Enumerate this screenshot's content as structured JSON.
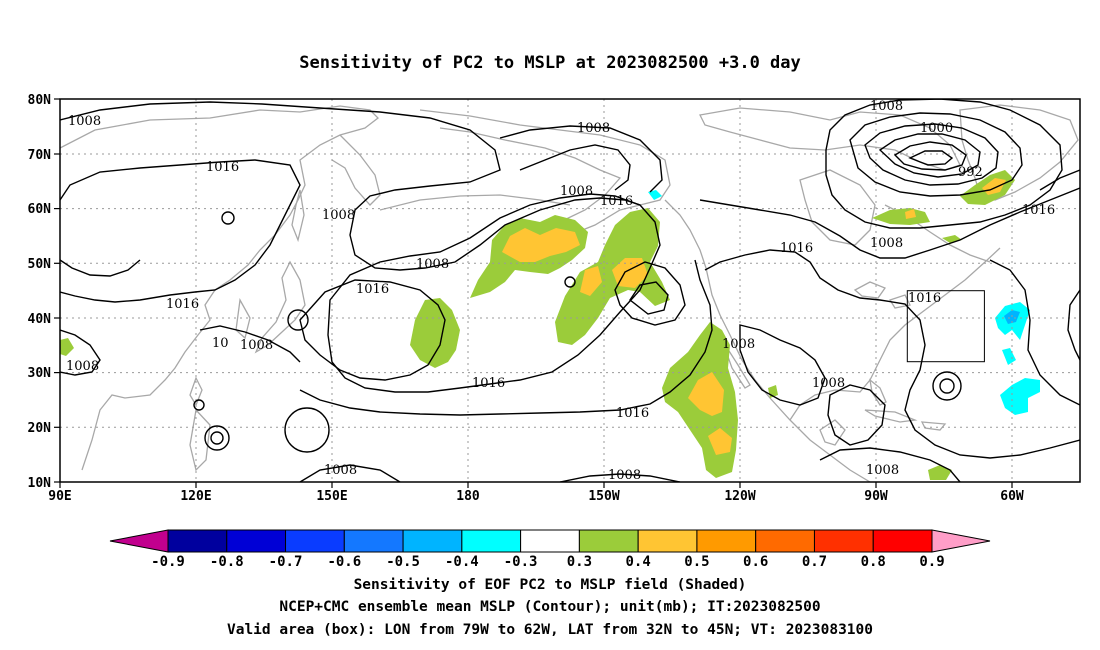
{
  "title": "Sensitivity of PC2 to MSLP at 2023082500 +3.0 day",
  "map": {
    "lon_labels": [
      "90E",
      "120E",
      "150E",
      "180",
      "150W",
      "120W",
      "90W",
      "60W"
    ],
    "lat_labels": [
      "80N",
      "70N",
      "60N",
      "50N",
      "40N",
      "30N",
      "20N",
      "10N"
    ],
    "isobar_labels": [
      {
        "text": "1008"
      },
      {
        "text": "1016"
      },
      {
        "text": "1008"
      },
      {
        "text": "1016"
      },
      {
        "text": "1008"
      },
      {
        "text": "1008"
      },
      {
        "text": "1016"
      },
      {
        "text": "1008"
      },
      {
        "text": "1000"
      },
      {
        "text": "992"
      },
      {
        "text": "1016"
      },
      {
        "text": "1016"
      },
      {
        "text": "1008"
      },
      {
        "text": "1016"
      },
      {
        "text": "1008"
      },
      {
        "text": "1016"
      },
      {
        "text": "1016"
      },
      {
        "text": "1008"
      },
      {
        "text": "1008"
      },
      {
        "text": "1008"
      },
      {
        "text": "1008"
      },
      {
        "text": "1008"
      },
      {
        "text": "1008"
      },
      {
        "text": "1016"
      },
      {
        "text": "1008"
      },
      {
        "text": "10"
      }
    ],
    "valid_box": {
      "lon_from": -79,
      "lon_to": -62,
      "lat_from": 32,
      "lat_to": 45
    }
  },
  "colorbar": {
    "colors": [
      "#c1008e",
      "#00009e",
      "#0000d6",
      "#0a3cff",
      "#1478ff",
      "#00b4ff",
      "#00ffff",
      "#ffffff",
      "#9bcc3a",
      "#ffc533",
      "#ff9a00",
      "#ff6a00",
      "#ff3000",
      "#ff0000",
      "#ff9ec8"
    ],
    "labels": [
      "-0.9",
      "-0.8",
      "-0.7",
      "-0.6",
      "-0.5",
      "-0.4",
      "-0.3",
      "0.3",
      "0.4",
      "0.5",
      "0.6",
      "0.7",
      "0.8",
      "0.9"
    ]
  },
  "captions": [
    "Sensitivity of EOF PC2 to MSLP field (Shaded)",
    "NCEP+CMC ensemble mean MSLP (Contour); unit(mb); IT:2023082500",
    "Valid area (box): LON from 79W to 62W, LAT from 32N to 45N; VT: 2023083100"
  ],
  "colors": {
    "coast": "#a8a8a8",
    "contour": "#000000",
    "grid": "#9a9a9a"
  }
}
